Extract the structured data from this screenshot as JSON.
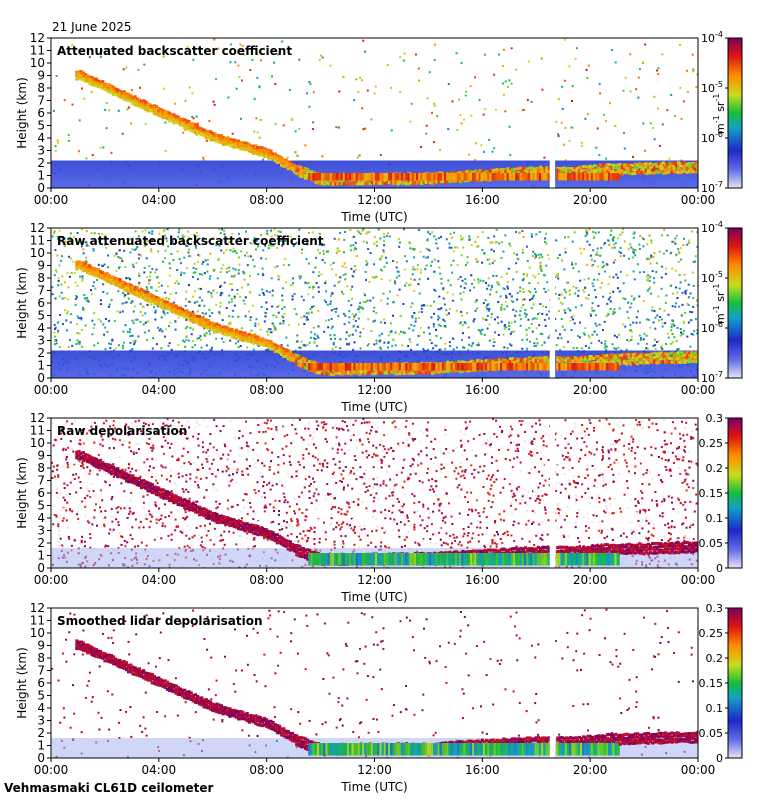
{
  "date_label": "21 June 2025",
  "footer": "Vehmasmaki CL61D ceilometer",
  "common": {
    "xlabel": "Time (UTC)",
    "ylabel": "Height (km)",
    "x_ticks": [
      "00:00",
      "04:00",
      "08:00",
      "12:00",
      "16:00",
      "20:00",
      "00:00"
    ],
    "x_range_hours": [
      0,
      24
    ],
    "y_ticks": [
      0,
      1,
      2,
      3,
      4,
      5,
      6,
      7,
      8,
      9,
      10,
      11,
      12
    ],
    "y_range_km": [
      0,
      12
    ]
  },
  "chart_data": [
    {
      "type": "heatmap",
      "title": "Attenuated backscatter coefficient",
      "xlabel": "Time (UTC)",
      "ylabel": "Height (km)",
      "xlim_hours": [
        0,
        24
      ],
      "ylim_km": [
        0,
        12
      ],
      "colorbar": {
        "scale": "log",
        "range": [
          1e-07,
          0.0001
        ],
        "ticks": [
          {
            "base": "10",
            "exp": "-4"
          },
          {
            "base": "10",
            "exp": "-5"
          },
          {
            "base": "10",
            "exp": "-6"
          },
          {
            "base": "10",
            "exp": "-7"
          }
        ],
        "unit": {
          "a": "m",
          "a_exp": "-1",
          "b": "sr",
          "b_exp": "-1"
        }
      },
      "features": {
        "aerosol_layer_top_km": [
          [
            1.0,
            9.5
          ],
          [
            4.0,
            6.5
          ],
          [
            6.0,
            4.5
          ],
          [
            8.0,
            3.2
          ],
          [
            9.0,
            2.0
          ],
          [
            10.0,
            1.2
          ],
          [
            14.0,
            1.3
          ],
          [
            18.0,
            1.8
          ],
          [
            19.5,
            1.8
          ],
          [
            20.5,
            2.0
          ],
          [
            24.0,
            2.2
          ]
        ],
        "data_gap_hours": [
          18.5,
          18.7
        ]
      }
    },
    {
      "type": "heatmap",
      "title": "Raw attenuated backscatter coefficient",
      "xlabel": "Time (UTC)",
      "ylabel": "Height (km)",
      "xlim_hours": [
        0,
        24
      ],
      "ylim_km": [
        0,
        12
      ],
      "colorbar": {
        "scale": "log",
        "range": [
          1e-07,
          0.0001
        ],
        "ticks": [
          {
            "base": "10",
            "exp": "-4"
          },
          {
            "base": "10",
            "exp": "-5"
          },
          {
            "base": "10",
            "exp": "-6"
          },
          {
            "base": "10",
            "exp": "-7"
          }
        ],
        "unit": {
          "a": "m",
          "a_exp": "-1",
          "b": "sr",
          "b_exp": "-1"
        }
      },
      "features": {
        "aerosol_layer_top_km": [
          [
            1.0,
            9.5
          ],
          [
            4.0,
            6.5
          ],
          [
            6.0,
            4.5
          ],
          [
            8.0,
            3.2
          ],
          [
            9.0,
            2.0
          ],
          [
            10.0,
            1.2
          ],
          [
            14.0,
            1.3
          ],
          [
            18.0,
            1.8
          ],
          [
            19.5,
            1.8
          ],
          [
            20.5,
            2.0
          ],
          [
            24.0,
            2.2
          ]
        ],
        "data_gap_hours": [
          18.5,
          18.7
        ]
      }
    },
    {
      "type": "heatmap",
      "title": "Raw depolarisation",
      "xlabel": "Time (UTC)",
      "ylabel": "Height (km)",
      "xlim_hours": [
        0,
        24
      ],
      "ylim_km": [
        0,
        12
      ],
      "colorbar": {
        "scale": "linear",
        "range": [
          0,
          0.3
        ],
        "ticks": [
          "0.3",
          "0.25",
          "0.2",
          "0.15",
          "0.1",
          "0.05",
          "0"
        ]
      },
      "features": {
        "aerosol_layer_top_km": [
          [
            1.0,
            9.5
          ],
          [
            4.0,
            6.5
          ],
          [
            6.0,
            4.5
          ],
          [
            8.0,
            3.2
          ],
          [
            9.0,
            2.0
          ],
          [
            10.0,
            1.2
          ],
          [
            14.0,
            1.3
          ],
          [
            18.0,
            1.8
          ],
          [
            19.5,
            1.8
          ],
          [
            20.5,
            2.0
          ],
          [
            24.0,
            2.2
          ]
        ],
        "data_gap_hours": [
          18.5,
          18.7
        ]
      }
    },
    {
      "type": "heatmap",
      "title": "Smoothed lidar depolarisation",
      "xlabel": "Time (UTC)",
      "ylabel": "Height (km)",
      "xlim_hours": [
        0,
        24
      ],
      "ylim_km": [
        0,
        12
      ],
      "colorbar": {
        "scale": "linear",
        "range": [
          0,
          0.3
        ],
        "ticks": [
          "0.3",
          "0.25",
          "0.2",
          "0.15",
          "0.1",
          "0.05",
          "0"
        ]
      },
      "features": {
        "aerosol_layer_top_km": [
          [
            1.0,
            9.5
          ],
          [
            4.0,
            6.5
          ],
          [
            6.0,
            4.5
          ],
          [
            8.0,
            3.2
          ],
          [
            9.0,
            2.0
          ],
          [
            10.0,
            1.2
          ],
          [
            14.0,
            1.3
          ],
          [
            18.0,
            1.8
          ],
          [
            19.5,
            1.8
          ],
          [
            20.5,
            2.0
          ],
          [
            24.0,
            2.2
          ]
        ],
        "data_gap_hours": [
          18.5,
          18.7
        ]
      }
    }
  ]
}
